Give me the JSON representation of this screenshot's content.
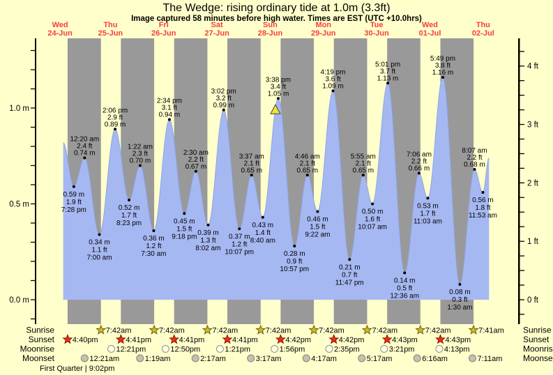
{
  "title": "The Wedge: rising  ordinary tide at 1.0m (3.3ft)",
  "subtitle": "Image captured 58 minutes before high water. Times are EST (UTC +10.0hrs)",
  "colors": {
    "background": "#ffffcc",
    "day_band": "#ffffcc",
    "night_band": "#999999",
    "tide_fill": "#a6b8f2",
    "tide_edge": "#8ea4e6",
    "day_label": "#f63d3d",
    "axis": "#000000",
    "label_text": "#000000",
    "marker_triangle_fill": "#ece23a",
    "marker_triangle_stroke": "#444444",
    "sunrise_star_fill": "#d2b829",
    "sunrise_star_stroke": "#6e5e06",
    "sunset_star_fill": "#e23317",
    "sunset_star_stroke": "#8e1200",
    "moonrise_circle_fill": "#ffffe2",
    "moonrise_circle_stroke": "#8f8f8f",
    "moonset_circle_fill": "#c2c2ae",
    "moonset_circle_stroke": "#85857a"
  },
  "days": [
    {
      "weekday": "Wed",
      "date": "24-Jun"
    },
    {
      "weekday": "Thu",
      "date": "25-Jun"
    },
    {
      "weekday": "Fri",
      "date": "26-Jun"
    },
    {
      "weekday": "Sat",
      "date": "27-Jun"
    },
    {
      "weekday": "Sun",
      "date": "28-Jun"
    },
    {
      "weekday": "Mon",
      "date": "29-Jun"
    },
    {
      "weekday": "Tue",
      "date": "30-Jun"
    },
    {
      "weekday": "Wed",
      "date": "01-Jul"
    },
    {
      "weekday": "Thu",
      "date": "02-Jul"
    }
  ],
  "chart_data": {
    "type": "area",
    "title": "Tide height curve",
    "y_axis_left": {
      "unit": "m",
      "minor_step": 0.1,
      "labels": [
        {
          "value": 0.0,
          "text": "0.0 m"
        },
        {
          "value": 0.5,
          "text": "0.5 m"
        },
        {
          "value": 1.0,
          "text": "1.0 m"
        }
      ]
    },
    "y_axis_right": {
      "unit": "ft",
      "minor_step": 0.25,
      "labels": [
        {
          "value": 0,
          "text": "0 ft"
        },
        {
          "value": 1,
          "text": "1 ft"
        },
        {
          "value": 2,
          "text": "2 ft"
        },
        {
          "value": 3,
          "text": "3 ft"
        },
        {
          "value": 4,
          "text": "4 ft"
        }
      ]
    },
    "curve_start": {
      "day": 0,
      "time": "2:40 pm",
      "height_m": 0.82
    },
    "curve_end": {
      "day": 8,
      "time": "2:40 pm",
      "height_m": 0.74
    },
    "current_time_marker": {
      "day": 4,
      "time": "2:40 pm"
    },
    "tide_points": [
      {
        "day": 0,
        "time": "7:28 pm",
        "height_m": "0.59",
        "height_ft": "1.9",
        "type": "low"
      },
      {
        "day": 1,
        "time": "12:20 am",
        "height_m": "0.74",
        "height_ft": "2.4",
        "type": "high"
      },
      {
        "day": 1,
        "time": "7:00 am",
        "height_m": "0.34",
        "height_ft": "1.1",
        "type": "low"
      },
      {
        "day": 1,
        "time": "2:06 pm",
        "height_m": "0.89",
        "height_ft": "2.9",
        "type": "high"
      },
      {
        "day": 1,
        "time": "8:23 pm",
        "height_m": "0.52",
        "height_ft": "1.7",
        "type": "low"
      },
      {
        "day": 2,
        "time": "1:22 am",
        "height_m": "0.70",
        "height_ft": "2.3",
        "type": "high"
      },
      {
        "day": 2,
        "time": "7:30 am",
        "height_m": "0.36",
        "height_ft": "1.2",
        "type": "low"
      },
      {
        "day": 2,
        "time": "2:34 pm",
        "height_m": "0.94",
        "height_ft": "3.1",
        "type": "high"
      },
      {
        "day": 2,
        "time": "9:18 pm",
        "height_m": "0.45",
        "height_ft": "1.5",
        "type": "low"
      },
      {
        "day": 3,
        "time": "2:30 am",
        "height_m": "0.67",
        "height_ft": "2.2",
        "type": "high"
      },
      {
        "day": 3,
        "time": "8:02 am",
        "height_m": "0.39",
        "height_ft": "1.3",
        "type": "low"
      },
      {
        "day": 3,
        "time": "3:02 pm",
        "height_m": "0.99",
        "height_ft": "3.2",
        "type": "high"
      },
      {
        "day": 3,
        "time": "10:07 pm",
        "height_m": "0.37",
        "height_ft": "1.2",
        "type": "low"
      },
      {
        "day": 4,
        "time": "3:37 am",
        "height_m": "0.65",
        "height_ft": "2.1",
        "type": "high"
      },
      {
        "day": 4,
        "time": "8:40 am",
        "height_m": "0.43",
        "height_ft": "1.4",
        "type": "low"
      },
      {
        "day": 4,
        "time": "3:38 pm",
        "height_m": "1.05",
        "height_ft": "3.4",
        "type": "high"
      },
      {
        "day": 4,
        "time": "10:57 pm",
        "height_m": "0.28",
        "height_ft": "0.9",
        "type": "low"
      },
      {
        "day": 5,
        "time": "4:46 am",
        "height_m": "0.65",
        "height_ft": "2.1",
        "type": "high"
      },
      {
        "day": 5,
        "time": "9:22 am",
        "height_m": "0.46",
        "height_ft": "1.5",
        "type": "low"
      },
      {
        "day": 5,
        "time": "4:19 pm",
        "height_m": "1.09",
        "height_ft": "3.6",
        "type": "high"
      },
      {
        "day": 5,
        "time": "11:47 pm",
        "height_m": "0.21",
        "height_ft": "0.7",
        "type": "low"
      },
      {
        "day": 6,
        "time": "5:55 am",
        "height_m": "0.65",
        "height_ft": "2.1",
        "type": "high"
      },
      {
        "day": 6,
        "time": "10:07 am",
        "height_m": "0.50",
        "height_ft": "1.6",
        "type": "low"
      },
      {
        "day": 6,
        "time": "5:01 pm",
        "height_m": "1.13",
        "height_ft": "3.7",
        "type": "high"
      },
      {
        "day": 7,
        "time": "12:36 am",
        "height_m": "0.14",
        "height_ft": "0.5",
        "type": "low"
      },
      {
        "day": 7,
        "time": "7:06 am",
        "height_m": "0.66",
        "height_ft": "2.2",
        "type": "high"
      },
      {
        "day": 7,
        "time": "11:03 am",
        "height_m": "0.53",
        "height_ft": "1.7",
        "type": "low"
      },
      {
        "day": 7,
        "time": "5:49 pm",
        "height_m": "1.16",
        "height_ft": "3.8",
        "type": "high"
      },
      {
        "day": 8,
        "time": "1:30 am",
        "height_m": "0.08",
        "height_ft": "0.3",
        "type": "low"
      },
      {
        "day": 8,
        "time": "8:07 am",
        "height_m": "0.68",
        "height_ft": "2.2",
        "type": "high"
      },
      {
        "day": 8,
        "time": "11:53 am",
        "height_m": "0.56",
        "height_ft": "1.8",
        "type": "low"
      }
    ]
  },
  "astro": {
    "rows": [
      {
        "id": "sunrise",
        "label": "Sunrise",
        "icon": "sunrise-star",
        "events": [
          {
            "day": 1,
            "time": "7:42am"
          },
          {
            "day": 2,
            "time": "7:42am"
          },
          {
            "day": 3,
            "time": "7:42am"
          },
          {
            "day": 4,
            "time": "7:42am"
          },
          {
            "day": 5,
            "time": "7:42am"
          },
          {
            "day": 6,
            "time": "7:42am"
          },
          {
            "day": 7,
            "time": "7:42am"
          },
          {
            "day": 8,
            "time": "7:41am"
          }
        ]
      },
      {
        "id": "sunset",
        "label": "Sunset",
        "icon": "sunset-star",
        "events": [
          {
            "day": 0,
            "time": "4:40pm"
          },
          {
            "day": 1,
            "time": "4:41pm"
          },
          {
            "day": 2,
            "time": "4:41pm"
          },
          {
            "day": 3,
            "time": "4:41pm"
          },
          {
            "day": 4,
            "time": "4:42pm"
          },
          {
            "day": 5,
            "time": "4:42pm"
          },
          {
            "day": 6,
            "time": "4:43pm"
          },
          {
            "day": 7,
            "time": "4:43pm"
          }
        ]
      },
      {
        "id": "moonrise",
        "label": "Moonrise",
        "icon": "moonrise-circle",
        "events": [
          {
            "day": 1,
            "time": "12:21pm"
          },
          {
            "day": 2,
            "time": "12:50pm"
          },
          {
            "day": 3,
            "time": "1:21pm"
          },
          {
            "day": 4,
            "time": "1:56pm"
          },
          {
            "day": 5,
            "time": "2:35pm"
          },
          {
            "day": 6,
            "time": "3:21pm"
          },
          {
            "day": 7,
            "time": "4:13pm"
          }
        ]
      },
      {
        "id": "moonset",
        "label": "Moonset",
        "icon": "moonset-circle",
        "events": [
          {
            "day": 1,
            "time": "12:21am"
          },
          {
            "day": 2,
            "time": "1:19am"
          },
          {
            "day": 3,
            "time": "2:17am"
          },
          {
            "day": 4,
            "time": "3:17am"
          },
          {
            "day": 5,
            "time": "4:17am"
          },
          {
            "day": 6,
            "time": "5:17am"
          },
          {
            "day": 7,
            "time": "6:16am"
          },
          {
            "day": 8,
            "time": "7:11am"
          }
        ]
      }
    ],
    "moon_phase_note": "First Quarter | 9:02pm"
  }
}
